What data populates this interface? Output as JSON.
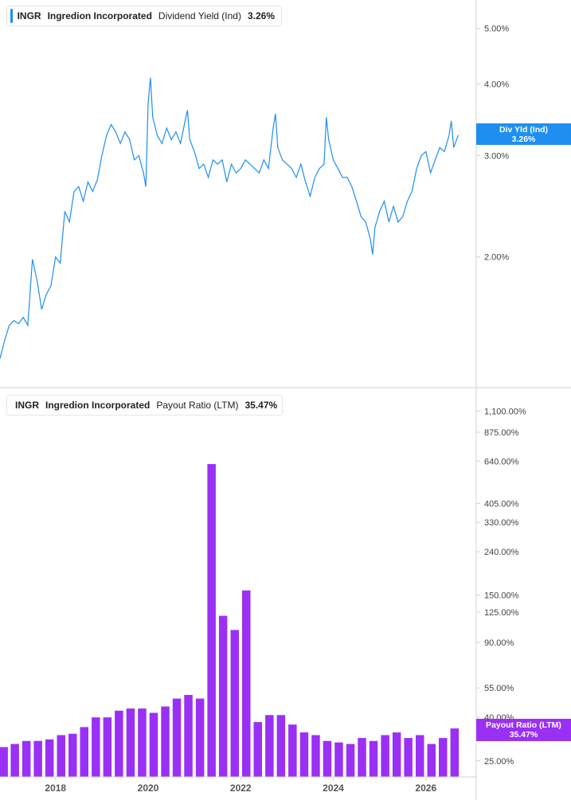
{
  "colors": {
    "div_yield": "#1f8ef1",
    "payout": "#9b30f5"
  },
  "chart_data": [
    {
      "type": "line",
      "legend": {
        "ticker": "INGR",
        "company": "Ingredion Incorporated",
        "metric": "Dividend Yield (Ind)",
        "value": "3.26%"
      },
      "badge": {
        "label": "Div Yld (Ind)",
        "value": "3.26%"
      },
      "y_scale": "log",
      "ylim": [
        1.25,
        5.6
      ],
      "y_ticks": [
        {
          "value": 2.0,
          "label": "2.00%"
        },
        {
          "value": 3.0,
          "label": "3.00%"
        },
        {
          "value": 4.0,
          "label": "4.00%"
        },
        {
          "value": 5.0,
          "label": "5.00%"
        }
      ],
      "x": [
        2016.8,
        2016.9,
        2017.0,
        2017.1,
        2017.2,
        2017.3,
        2017.4,
        2017.5,
        2017.6,
        2017.7,
        2017.8,
        2017.9,
        2018.0,
        2018.1,
        2018.2,
        2018.3,
        2018.4,
        2018.5,
        2018.6,
        2018.7,
        2018.8,
        2018.9,
        2019.0,
        2019.1,
        2019.2,
        2019.3,
        2019.4,
        2019.5,
        2019.6,
        2019.7,
        2019.8,
        2019.9,
        2019.95,
        2020.0,
        2020.05,
        2020.1,
        2020.2,
        2020.3,
        2020.4,
        2020.5,
        2020.6,
        2020.7,
        2020.8,
        2020.85,
        2020.9,
        2021.0,
        2021.1,
        2021.2,
        2021.3,
        2021.4,
        2021.5,
        2021.6,
        2021.7,
        2021.8,
        2021.9,
        2022.0,
        2022.1,
        2022.2,
        2022.3,
        2022.4,
        2022.5,
        2022.6,
        2022.7,
        2022.75,
        2022.8,
        2022.9,
        2023.0,
        2023.1,
        2023.2,
        2023.3,
        2023.4,
        2023.5,
        2023.6,
        2023.7,
        2023.8,
        2023.85,
        2023.9,
        2024.0,
        2024.1,
        2024.2,
        2024.3,
        2024.4,
        2024.5,
        2024.6,
        2024.7,
        2024.8,
        2024.85,
        2024.9,
        2025.0,
        2025.1,
        2025.2,
        2025.3,
        2025.4,
        2025.5,
        2025.6,
        2025.7,
        2025.8,
        2025.9,
        2026.0,
        2026.1,
        2026.2,
        2026.3,
        2026.4,
        2026.5,
        2026.55,
        2026.6,
        2026.7
      ],
      "y": [
        1.33,
        1.43,
        1.52,
        1.55,
        1.53,
        1.57,
        1.52,
        1.98,
        1.82,
        1.62,
        1.72,
        1.78,
        2.0,
        1.95,
        2.4,
        2.3,
        2.6,
        2.65,
        2.5,
        2.7,
        2.6,
        2.72,
        3.0,
        3.25,
        3.4,
        3.3,
        3.15,
        3.3,
        3.2,
        2.95,
        3.0,
        2.8,
        2.65,
        3.7,
        4.1,
        3.5,
        3.25,
        3.15,
        3.35,
        3.2,
        3.3,
        3.15,
        3.45,
        3.6,
        3.2,
        3.05,
        2.85,
        2.9,
        2.75,
        2.95,
        2.9,
        2.95,
        2.7,
        2.9,
        2.8,
        2.85,
        2.95,
        2.9,
        2.85,
        2.8,
        2.95,
        2.85,
        3.35,
        3.55,
        3.1,
        2.95,
        2.9,
        2.85,
        2.75,
        2.9,
        2.7,
        2.55,
        2.75,
        2.85,
        2.9,
        3.5,
        3.2,
        2.95,
        2.85,
        2.75,
        2.75,
        2.65,
        2.5,
        2.35,
        2.3,
        2.15,
        2.02,
        2.25,
        2.4,
        2.5,
        2.3,
        2.45,
        2.3,
        2.35,
        2.5,
        2.6,
        2.85,
        3.0,
        3.05,
        2.8,
        2.95,
        3.1,
        3.05,
        3.25,
        3.45,
        3.1,
        3.26
      ]
    },
    {
      "type": "bar",
      "legend": {
        "ticker": "INGR",
        "company": "Ingredion Incorporated",
        "metric": "Payout Ratio (LTM)",
        "value": "35.47%"
      },
      "badge": {
        "label": "Payout Ratio (LTM)",
        "value": "35.47%"
      },
      "y_scale": "log",
      "ylim": [
        21,
        1300
      ],
      "y_ticks": [
        {
          "value": 25,
          "label": "25.00%"
        },
        {
          "value": 40,
          "label": "40.00%"
        },
        {
          "value": 55,
          "label": "55.00%"
        },
        {
          "value": 90,
          "label": "90.00%"
        },
        {
          "value": 125,
          "label": "125.00%"
        },
        {
          "value": 150,
          "label": "150.00%"
        },
        {
          "value": 240,
          "label": "240.00%"
        },
        {
          "value": 330,
          "label": "330.00%"
        },
        {
          "value": 405,
          "label": "405.00%"
        },
        {
          "value": 640,
          "label": "640.00%"
        },
        {
          "value": 875,
          "label": "875.00%"
        },
        {
          "value": 1100,
          "label": "1,100.00%"
        }
      ],
      "x": [
        2016.88,
        2017.12,
        2017.37,
        2017.62,
        2017.87,
        2018.12,
        2018.37,
        2018.62,
        2018.87,
        2019.12,
        2019.37,
        2019.62,
        2019.87,
        2020.12,
        2020.37,
        2020.62,
        2020.87,
        2021.12,
        2021.37,
        2021.62,
        2021.87,
        2022.12,
        2022.37,
        2022.62,
        2022.87,
        2023.12,
        2023.37,
        2023.62,
        2023.87,
        2024.12,
        2024.37,
        2024.62,
        2024.87,
        2025.12,
        2025.37,
        2025.62,
        2025.87,
        2026.12,
        2026.37,
        2026.62
      ],
      "values": [
        29,
        30,
        31,
        31,
        31.5,
        33,
        33.5,
        36,
        40,
        40,
        43,
        44,
        44,
        42,
        45,
        49,
        51,
        49,
        620,
        120,
        103,
        158,
        38,
        41,
        41,
        37,
        34,
        33,
        31,
        30.5,
        30,
        32,
        31,
        33,
        34,
        32,
        33,
        30,
        32,
        35.47
      ]
    }
  ],
  "x_axis": {
    "ticks": [
      {
        "value": 2018,
        "label": "2018"
      },
      {
        "value": 2020,
        "label": "2020"
      },
      {
        "value": 2022,
        "label": "2022"
      },
      {
        "value": 2024,
        "label": "2024"
      },
      {
        "value": 2026,
        "label": "2026"
      }
    ]
  }
}
